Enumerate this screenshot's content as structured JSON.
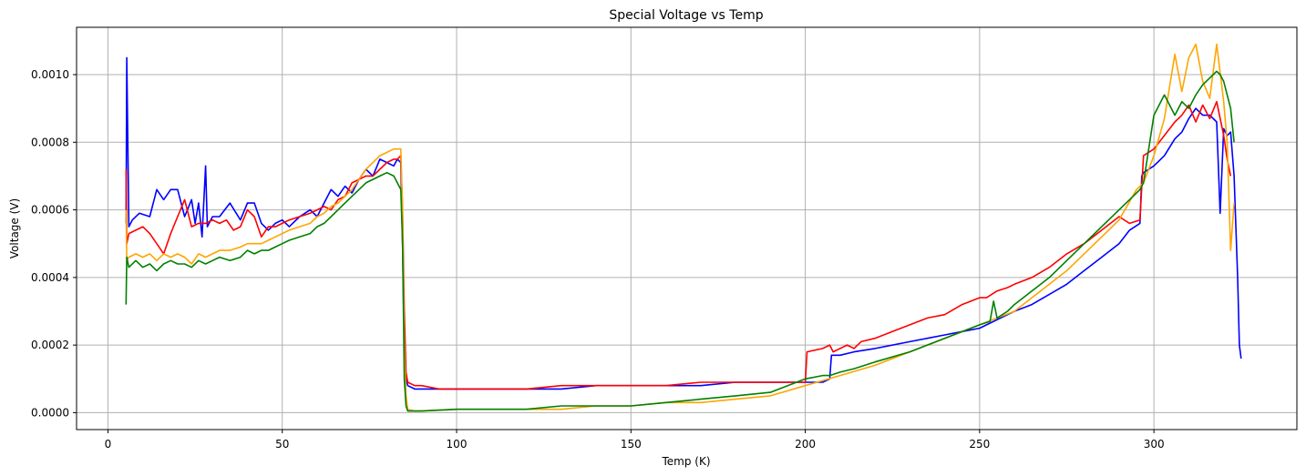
{
  "chart_data": {
    "type": "line",
    "title": "Special Voltage vs Temp",
    "xlabel": "Temp (K)",
    "ylabel": "Voltage (V)",
    "xlim": [
      -9,
      341
    ],
    "ylim": [
      -5e-05,
      0.00114
    ],
    "xticks": [
      0,
      50,
      100,
      150,
      200,
      250,
      300
    ],
    "xtick_labels": [
      "0",
      "50",
      "100",
      "150",
      "200",
      "250",
      "300"
    ],
    "yticks": [
      0.0,
      0.0002,
      0.0004,
      0.0006,
      0.0008,
      0.001
    ],
    "ytick_labels": [
      "0.0000",
      "0.0002",
      "0.0004",
      "0.0006",
      "0.0008",
      "0.0010"
    ],
    "grid": true,
    "series": [
      {
        "color": "#0000ff",
        "x": [
          5.2,
          5.4,
          6,
          7,
          9,
          12,
          14,
          16,
          18,
          20,
          22,
          24,
          25,
          26,
          27,
          28,
          28.5,
          29,
          30,
          32,
          35,
          38,
          40,
          42,
          44,
          46,
          48,
          50,
          52,
          55,
          58,
          60,
          62,
          64,
          66,
          68,
          70,
          72,
          74,
          76,
          78,
          80,
          82,
          83,
          84,
          84.5,
          85,
          85.5,
          86,
          88,
          90,
          95,
          100,
          110,
          120,
          130,
          140,
          150,
          160,
          170,
          180,
          190,
          200,
          205,
          207,
          207.5,
          210,
          214,
          220,
          230,
          235,
          240,
          245,
          250,
          252,
          254,
          256,
          260,
          265,
          270,
          275,
          280,
          285,
          290,
          293,
          296,
          296.5,
          297,
          300,
          303,
          306,
          308,
          310,
          312,
          314,
          316,
          318,
          319,
          320,
          321,
          322,
          323,
          324,
          324.5,
          325
        ],
        "y": [
          0.00056,
          0.00105,
          0.00055,
          0.00057,
          0.00059,
          0.00058,
          0.00066,
          0.00063,
          0.00066,
          0.00066,
          0.00058,
          0.00063,
          0.00056,
          0.00062,
          0.00052,
          0.00073,
          0.00055,
          0.00056,
          0.00058,
          0.00058,
          0.00062,
          0.00057,
          0.00062,
          0.00062,
          0.00056,
          0.00054,
          0.00056,
          0.00057,
          0.00055,
          0.00058,
          0.0006,
          0.00058,
          0.00062,
          0.00066,
          0.00064,
          0.00067,
          0.00065,
          0.00069,
          0.00072,
          0.0007,
          0.00075,
          0.00074,
          0.00073,
          0.00075,
          0.00074,
          0.0005,
          0.0002,
          0.0001,
          8e-05,
          7e-05,
          7e-05,
          7e-05,
          7e-05,
          7e-05,
          7e-05,
          7e-05,
          8e-05,
          8e-05,
          8e-05,
          8e-05,
          9e-05,
          9e-05,
          9e-05,
          9e-05,
          0.0001,
          0.00017,
          0.00017,
          0.00018,
          0.00019,
          0.00021,
          0.00022,
          0.00023,
          0.00024,
          0.00025,
          0.00026,
          0.00027,
          0.00028,
          0.0003,
          0.00032,
          0.00035,
          0.00038,
          0.00042,
          0.00046,
          0.0005,
          0.00054,
          0.00056,
          0.0007,
          0.00071,
          0.00073,
          0.00076,
          0.00081,
          0.00083,
          0.00087,
          0.0009,
          0.00088,
          0.00088,
          0.00086,
          0.00059,
          0.00084,
          0.00082,
          0.00083,
          0.0007,
          0.0004,
          0.0002,
          0.00016
        ]
      },
      {
        "color": "#ff0000",
        "x": [
          5.2,
          5.4,
          6,
          8,
          10,
          12,
          14,
          16,
          18,
          20,
          22,
          24,
          26,
          28,
          30,
          32,
          34,
          36,
          38,
          40,
          42,
          44,
          46,
          48,
          50,
          52,
          55,
          58,
          60,
          62,
          64,
          66,
          68,
          70,
          72,
          74,
          76,
          78,
          80,
          82,
          83,
          84,
          84.5,
          85,
          85.5,
          86,
          88,
          90,
          95,
          100,
          110,
          120,
          130,
          140,
          150,
          160,
          170,
          180,
          190,
          200,
          200.5,
          205,
          207,
          208,
          210,
          212,
          214,
          216,
          220,
          225,
          230,
          235,
          240,
          245,
          250,
          252,
          255,
          258,
          260,
          265,
          270,
          275,
          280,
          285,
          290,
          293,
          296,
          297,
          300,
          303,
          306,
          308,
          310,
          312,
          314,
          316,
          318,
          320,
          321,
          322
        ],
        "y": [
          0.00072,
          0.0005,
          0.00053,
          0.00054,
          0.00055,
          0.00053,
          0.0005,
          0.00047,
          0.00053,
          0.00058,
          0.00063,
          0.00055,
          0.00056,
          0.00056,
          0.00057,
          0.00056,
          0.00057,
          0.00054,
          0.00055,
          0.0006,
          0.00058,
          0.00052,
          0.00055,
          0.00055,
          0.00056,
          0.00057,
          0.00058,
          0.00059,
          0.0006,
          0.00061,
          0.0006,
          0.00063,
          0.00064,
          0.00068,
          0.00069,
          0.0007,
          0.0007,
          0.00072,
          0.00074,
          0.00075,
          0.00075,
          0.00076,
          0.0006,
          0.0003,
          0.00012,
          9e-05,
          8e-05,
          8e-05,
          7e-05,
          7e-05,
          7e-05,
          7e-05,
          8e-05,
          8e-05,
          8e-05,
          8e-05,
          9e-05,
          9e-05,
          9e-05,
          9e-05,
          0.00018,
          0.00019,
          0.0002,
          0.00018,
          0.00019,
          0.0002,
          0.00019,
          0.00021,
          0.00022,
          0.00024,
          0.00026,
          0.00028,
          0.00029,
          0.00032,
          0.00034,
          0.00034,
          0.00036,
          0.00037,
          0.00038,
          0.0004,
          0.00043,
          0.00047,
          0.0005,
          0.00054,
          0.00058,
          0.00056,
          0.00057,
          0.00076,
          0.00078,
          0.00082,
          0.00086,
          0.00088,
          0.00091,
          0.00086,
          0.00091,
          0.00087,
          0.00092,
          0.00082,
          0.00075,
          0.0007
        ]
      },
      {
        "color": "#ffa500",
        "x": [
          5.2,
          5.4,
          6,
          8,
          10,
          12,
          14,
          16,
          18,
          20,
          22,
          24,
          26,
          28,
          30,
          32,
          35,
          38,
          40,
          42,
          44,
          46,
          48,
          50,
          52,
          55,
          58,
          60,
          62,
          64,
          66,
          68,
          70,
          72,
          74,
          76,
          78,
          80,
          82,
          83,
          84,
          84.5,
          85,
          85.5,
          86,
          88,
          90,
          100,
          110,
          120,
          130,
          140,
          150,
          160,
          170,
          180,
          190,
          200,
          210,
          220,
          230,
          240,
          250,
          255,
          260,
          265,
          270,
          275,
          280,
          285,
          290,
          295,
          297,
          300,
          303,
          306,
          308,
          310,
          312,
          314,
          316,
          318,
          320,
          321,
          322,
          323
        ],
        "y": [
          0.0006,
          0.00045,
          0.00046,
          0.00047,
          0.00046,
          0.00047,
          0.00045,
          0.00047,
          0.00046,
          0.00047,
          0.00046,
          0.00044,
          0.00047,
          0.00046,
          0.00047,
          0.00048,
          0.00048,
          0.00049,
          0.0005,
          0.0005,
          0.0005,
          0.00051,
          0.00052,
          0.00053,
          0.00054,
          0.00055,
          0.00056,
          0.00058,
          0.00059,
          0.00061,
          0.00062,
          0.00064,
          0.00066,
          0.00069,
          0.00072,
          0.00074,
          0.00076,
          0.00077,
          0.00078,
          0.00078,
          0.00078,
          0.0006,
          0.0002,
          5e-05,
          1e-05,
          5e-06,
          5e-06,
          1e-05,
          1e-05,
          1e-05,
          1e-05,
          2e-05,
          2e-05,
          3e-05,
          3e-05,
          4e-05,
          5e-05,
          8e-05,
          0.00011,
          0.00014,
          0.00018,
          0.00022,
          0.00026,
          0.00028,
          0.0003,
          0.00034,
          0.00038,
          0.00042,
          0.00047,
          0.00052,
          0.00057,
          0.00066,
          0.00068,
          0.00076,
          0.00087,
          0.00106,
          0.00095,
          0.00105,
          0.00109,
          0.00098,
          0.00093,
          0.00109,
          0.00092,
          0.0008,
          0.00048,
          0.00062
        ]
      },
      {
        "color": "#008000",
        "x": [
          5.2,
          5.4,
          6,
          8,
          10,
          12,
          14,
          16,
          18,
          20,
          22,
          24,
          26,
          28,
          30,
          32,
          35,
          38,
          40,
          42,
          44,
          46,
          48,
          50,
          52,
          55,
          58,
          60,
          62,
          64,
          66,
          68,
          70,
          72,
          74,
          76,
          78,
          80,
          82,
          83,
          84,
          84.5,
          85,
          85.5,
          86,
          88,
          90,
          100,
          110,
          120,
          130,
          140,
          150,
          160,
          170,
          180,
          190,
          200,
          205,
          207,
          210,
          214,
          220,
          230,
          240,
          250,
          253,
          254,
          255,
          258,
          260,
          265,
          270,
          275,
          280,
          285,
          290,
          293,
          296,
          297,
          300,
          303,
          306,
          308,
          310,
          312,
          314,
          316,
          318,
          319,
          320,
          322,
          323
        ],
        "y": [
          0.00032,
          0.00046,
          0.00043,
          0.00045,
          0.00043,
          0.00044,
          0.00042,
          0.00044,
          0.00045,
          0.00044,
          0.00044,
          0.00043,
          0.00045,
          0.00044,
          0.00045,
          0.00046,
          0.00045,
          0.00046,
          0.00048,
          0.00047,
          0.00048,
          0.00048,
          0.00049,
          0.0005,
          0.00051,
          0.00052,
          0.00053,
          0.00055,
          0.00056,
          0.00058,
          0.0006,
          0.00062,
          0.00064,
          0.00066,
          0.00068,
          0.00069,
          0.0007,
          0.00071,
          0.0007,
          0.00068,
          0.00066,
          0.0005,
          0.0001,
          2e-05,
          5e-06,
          5e-06,
          5e-06,
          1e-05,
          1e-05,
          1e-05,
          2e-05,
          2e-05,
          2e-05,
          3e-05,
          4e-05,
          5e-05,
          6e-05,
          0.0001,
          0.00011,
          0.00011,
          0.00012,
          0.00013,
          0.00015,
          0.00018,
          0.00022,
          0.00026,
          0.00027,
          0.00033,
          0.00028,
          0.0003,
          0.00032,
          0.00036,
          0.0004,
          0.00045,
          0.0005,
          0.00055,
          0.0006,
          0.00063,
          0.00066,
          0.00068,
          0.00088,
          0.00094,
          0.00088,
          0.00092,
          0.0009,
          0.00094,
          0.00097,
          0.00099,
          0.00101,
          0.001,
          0.00098,
          0.0009,
          0.0008
        ]
      }
    ]
  }
}
